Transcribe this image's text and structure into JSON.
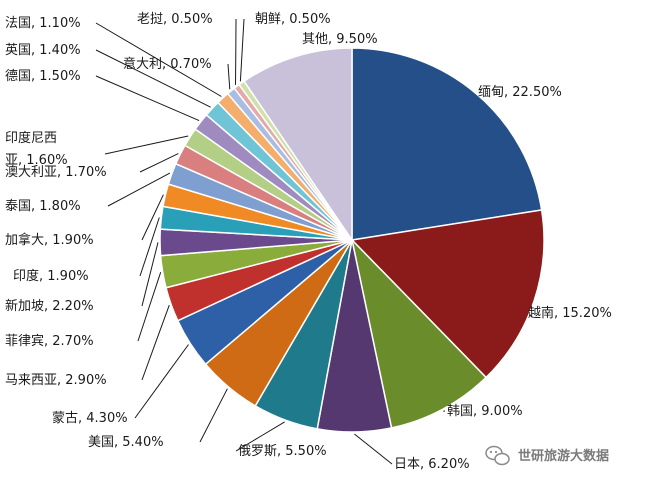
{
  "chart_data": {
    "type": "pie",
    "start_angle_deg": 0,
    "direction": "clockwise",
    "slices": [
      {
        "name": "缅甸",
        "value": 22.5,
        "label": "缅甸, 22.50%",
        "color": "#254f88"
      },
      {
        "name": "越南",
        "value": 15.2,
        "label": "越南, 15.20%",
        "color": "#8b1a1a"
      },
      {
        "name": "韩国",
        "value": 9.0,
        "label": "韩国, 9.00%",
        "color": "#6b8c2a"
      },
      {
        "name": "日本",
        "value": 6.2,
        "label": "日本, 6.20%",
        "color": "#553870"
      },
      {
        "name": "俄罗斯",
        "value": 5.5,
        "label": "俄罗斯, 5.50%",
        "color": "#1f7a8c"
      },
      {
        "name": "美国",
        "value": 5.4,
        "label": "美国, 5.40%",
        "color": "#cf6a15"
      },
      {
        "name": "蒙古",
        "value": 4.3,
        "label": "蒙古, 4.30%",
        "color": "#2e60a8"
      },
      {
        "name": "马来西亚",
        "value": 2.9,
        "label": "马来西亚, 2.90%",
        "color": "#c0302c"
      },
      {
        "name": "菲律宾",
        "value": 2.7,
        "label": "菲律宾, 2.70%",
        "color": "#8aac3b"
      },
      {
        "name": "新加坡",
        "value": 2.2,
        "label": "新加坡, 2.20%",
        "color": "#6a4a8c"
      },
      {
        "name": "印度",
        "value": 1.9,
        "label": "印度, 1.90%",
        "color": "#2aa0b8"
      },
      {
        "name": "加拿大",
        "value": 1.9,
        "label": "加拿大, 1.90%",
        "color": "#f08a24"
      },
      {
        "name": "泰国",
        "value": 1.8,
        "label": "泰国, 1.80%",
        "color": "#7f9fd0"
      },
      {
        "name": "澳大利亚",
        "value": 1.7,
        "label": "澳大利亚, 1.70%",
        "color": "#d97f7f"
      },
      {
        "name": "印度尼西亚",
        "value": 1.6,
        "label": "印度尼西亚, 1.60%",
        "color": "#b3cf85"
      },
      {
        "name": "德国",
        "value": 1.5,
        "label": "德国, 1.50%",
        "color": "#9f8bc0"
      },
      {
        "name": "英国",
        "value": 1.4,
        "label": "英国, 1.40%",
        "color": "#6fc4d6"
      },
      {
        "name": "法国",
        "value": 1.1,
        "label": "法国, 1.10%",
        "color": "#f5ad6c"
      },
      {
        "name": "意大利",
        "value": 0.7,
        "label": "意大利, 0.70%",
        "color": "#a9bde0"
      },
      {
        "name": "老挝",
        "value": 0.5,
        "label": "老挝, 0.50%",
        "color": "#e6a9a9"
      },
      {
        "name": "朝鲜",
        "value": 0.5,
        "label": "朝鲜, 0.50%",
        "color": "#cfe0a8"
      },
      {
        "name": "其他",
        "value": 9.5,
        "label": "其他, 9.50%",
        "color": "#c9c0d9"
      }
    ]
  },
  "watermark": {
    "text": "世研旅游大数据",
    "icon": "wechat-icon"
  }
}
